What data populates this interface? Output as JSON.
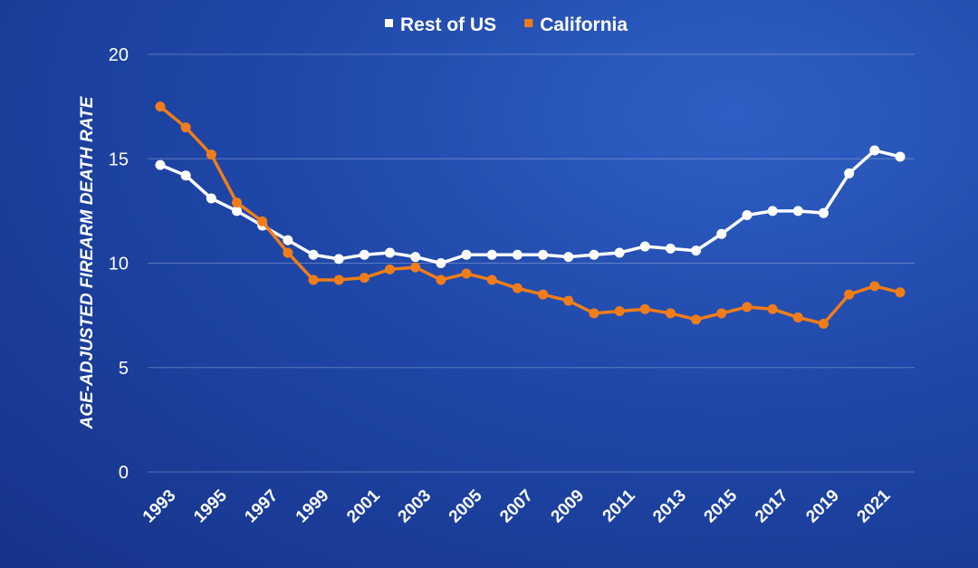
{
  "chart_data": {
    "type": "line",
    "title": "",
    "xlabel": "",
    "ylabel": "AGE-ADJUSTED FIREARM DEATH RATE",
    "ylim": [
      0,
      20
    ],
    "yticks": [
      0,
      5,
      10,
      15,
      20
    ],
    "x": [
      1993,
      1994,
      1995,
      1996,
      1997,
      1998,
      1999,
      2000,
      2001,
      2002,
      2003,
      2004,
      2005,
      2006,
      2007,
      2008,
      2009,
      2010,
      2011,
      2012,
      2013,
      2014,
      2015,
      2016,
      2017,
      2018,
      2019,
      2020,
      2021,
      2022
    ],
    "xtick_labels": [
      "1993",
      "1995",
      "1997",
      "1999",
      "2001",
      "2003",
      "2005",
      "2007",
      "2009",
      "2011",
      "2013",
      "2015",
      "2017",
      "2019",
      "2021"
    ],
    "grid": "horizontal",
    "legend_position": "top-center",
    "series": [
      {
        "name": "Rest of US",
        "color": "#ffffff",
        "values": [
          14.7,
          14.2,
          13.1,
          12.5,
          11.8,
          11.1,
          10.4,
          10.2,
          10.4,
          10.5,
          10.3,
          10.0,
          10.4,
          10.4,
          10.4,
          10.4,
          10.3,
          10.4,
          10.5,
          10.8,
          10.7,
          10.6,
          11.4,
          12.3,
          12.5,
          12.5,
          12.4,
          14.3,
          15.4,
          15.1
        ]
      },
      {
        "name": "California",
        "color": "#f07d1a",
        "values": [
          17.5,
          16.5,
          15.2,
          12.9,
          12.0,
          10.5,
          9.2,
          9.2,
          9.3,
          9.7,
          9.8,
          9.2,
          9.5,
          9.2,
          8.8,
          8.5,
          8.2,
          7.6,
          7.7,
          7.8,
          7.6,
          7.3,
          7.6,
          7.9,
          7.8,
          7.4,
          7.1,
          8.5,
          8.9,
          8.6
        ]
      }
    ]
  }
}
